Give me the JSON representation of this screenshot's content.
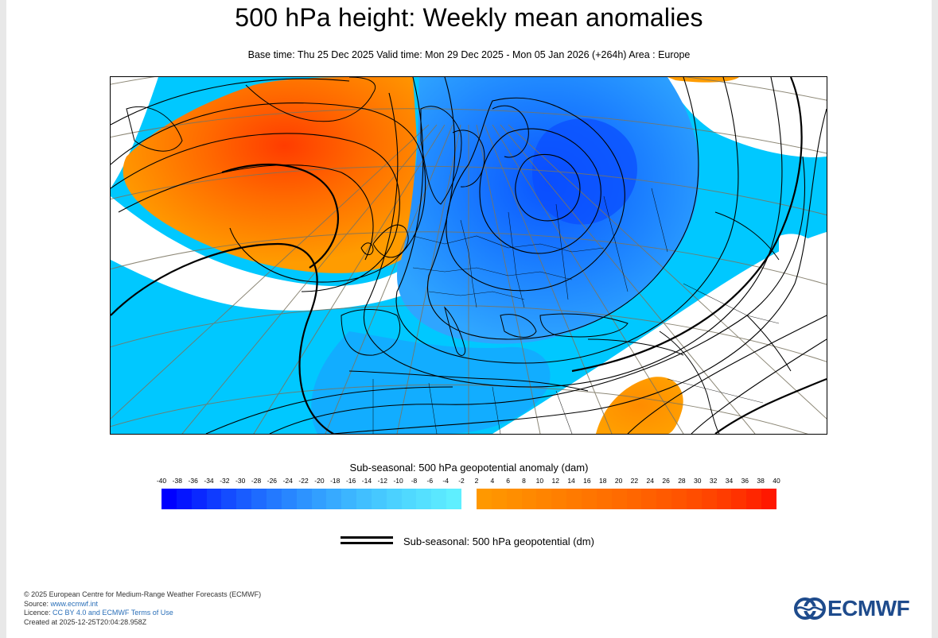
{
  "title": "500 hPa height: Weekly mean anomalies",
  "subtitle": "Base time: Thu 25 Dec 2025 Valid time: Mon 29 Dec 2025 - Mon 05 Jan 2026 (+264h) Area : Europe",
  "legend": {
    "title": "Sub-seasonal: 500 hPa geopotential anomaly (dam)",
    "negative_ticks": [
      "-40",
      "-38",
      "-36",
      "-34",
      "-32",
      "-30",
      "-28",
      "-26",
      "-24",
      "-22",
      "-20",
      "-18",
      "-16",
      "-14",
      "-12",
      "-10",
      "-8",
      "-6",
      "-4",
      "-2"
    ],
    "positive_ticks": [
      "2",
      "4",
      "6",
      "8",
      "10",
      "12",
      "14",
      "16",
      "18",
      "20",
      "22",
      "24",
      "26",
      "28",
      "30",
      "32",
      "34",
      "36",
      "38",
      "40"
    ],
    "negative_colors": [
      "#0000ff",
      "#0515ff",
      "#0a28ff",
      "#0f3bff",
      "#144cff",
      "#195cff",
      "#1e6bff",
      "#2379ff",
      "#2886ff",
      "#2d93ff",
      "#329fff",
      "#37aaff",
      "#3cb5ff",
      "#41bfff",
      "#46c8ff",
      "#4bd1ff",
      "#50d9ff",
      "#55e0ff",
      "#5ae7ff",
      "#5fefff"
    ],
    "positive_colors": [
      "#ff9800",
      "#ff9300",
      "#ff8e00",
      "#ff8900",
      "#ff8400",
      "#ff7f00",
      "#ff7a00",
      "#ff7500",
      "#ff7000",
      "#ff6b00",
      "#ff6600",
      "#ff6000",
      "#ff5a00",
      "#ff5400",
      "#ff4d00",
      "#ff4500",
      "#ff3c00",
      "#ff3200",
      "#ff2600",
      "#ff1800"
    ],
    "line_label": "Sub-seasonal: 500 hPa geopotential (dm)"
  },
  "map": {
    "area": "Europe",
    "colors": {
      "positive_anomaly_core": "#ff4a00",
      "positive_anomaly_edge": "#ff9a00",
      "negative_anomaly_weak": "#00d2ff",
      "negative_anomaly_mid": "#00a8ff",
      "negative_anomaly_strong": "#0a5cff",
      "contour": "#000000",
      "coastline": "#000000",
      "grid": "#7a7460"
    }
  },
  "footer": {
    "copyright": "© 2025 European Centre for Medium-Range Weather Forecasts (ECMWF)",
    "source_label": "Source: ",
    "source_link": "www.ecmwf.int",
    "licence_label": "Licence: ",
    "licence_link": "CC BY 4.0 and ECMWF Terms of Use",
    "created": "Created at 2025-12-25T20:04:28.958Z"
  },
  "logo": {
    "text": "ECMWF",
    "icon": "ecmwf-logo-icon"
  }
}
